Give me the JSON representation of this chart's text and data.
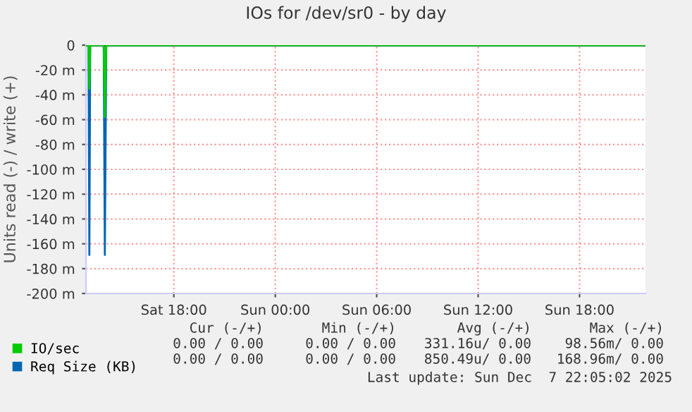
{
  "chart_data": {
    "type": "line",
    "title": "IOs for /dev/sr0 - by day",
    "ylabel": "Units read (-) / write (+)",
    "series": [
      {
        "name": "IO/sec",
        "color": "#00cc00",
        "x": [
          "2025-12-06T12:48",
          "2025-12-06T12:57",
          "2025-12-06T13:00",
          "2025-12-06T13:03",
          "2025-12-06T13:51",
          "2025-12-06T13:55",
          "2025-12-06T14:00",
          "2025-12-07T21:54"
        ],
        "values": [
          0,
          0,
          -35,
          0,
          0,
          -58,
          0,
          0
        ]
      },
      {
        "name": "Req Size (KB)",
        "color": "#0066b3",
        "x": [
          "2025-12-06T12:48",
          "2025-12-06T12:57",
          "2025-12-06T13:00",
          "2025-12-06T13:03",
          "2025-12-06T13:51",
          "2025-12-06T13:55",
          "2025-12-06T14:00",
          "2025-12-07T21:54"
        ],
        "values": [
          0,
          0,
          -169,
          0,
          0,
          -169,
          0,
          0
        ]
      }
    ],
    "xlim": [
      "2025-12-06T12:48",
      "2025-12-07T21:54"
    ],
    "xticks": [
      {
        "value": "2025-12-06T18:00",
        "label": "Sat 18:00"
      },
      {
        "value": "2025-12-07T00:00",
        "label": "Sun 00:00"
      },
      {
        "value": "2025-12-07T06:00",
        "label": "Sun 06:00"
      },
      {
        "value": "2025-12-07T12:00",
        "label": "Sun 12:00"
      },
      {
        "value": "2025-12-07T18:00",
        "label": "Sun 18:00"
      }
    ],
    "ylim": [
      -200,
      0
    ],
    "yticks": [
      0,
      {
        "value": -20,
        "label": "-20 m"
      },
      {
        "value": -40,
        "label": "-40 m"
      },
      {
        "value": -60,
        "label": "-60 m"
      },
      {
        "value": -80,
        "label": "-80 m"
      },
      {
        "value": -100,
        "label": "-100 m"
      },
      {
        "value": -120,
        "label": "-120 m"
      },
      {
        "value": -140,
        "label": "-140 m"
      },
      {
        "value": -160,
        "label": "-160 m"
      },
      {
        "value": -180,
        "label": "-180 m"
      },
      {
        "value": -200,
        "label": "-200 m"
      }
    ],
    "ref_lines": [
      {
        "axis": "y",
        "value": 0,
        "color": "#000000"
      }
    ],
    "grid": true,
    "legend": "bottom left",
    "marker": "none",
    "line_style": "solid",
    "annotations": [
      "Cur (-/+)",
      "Min (-/+)",
      "Avg (-/+)",
      "Max (-/+)",
      "0.00 / 0.00",
      "0.00 / 0.00",
      "331.16u/ 0.00",
      "98.56m/ 0.00",
      "0.00 / 0.00",
      "0.00 / 0.00",
      "850.49u/ 0.00",
      "168.96m/ 0.00",
      "Last update: Sun Dec  7 22:05:02 2025"
    ]
  }
}
